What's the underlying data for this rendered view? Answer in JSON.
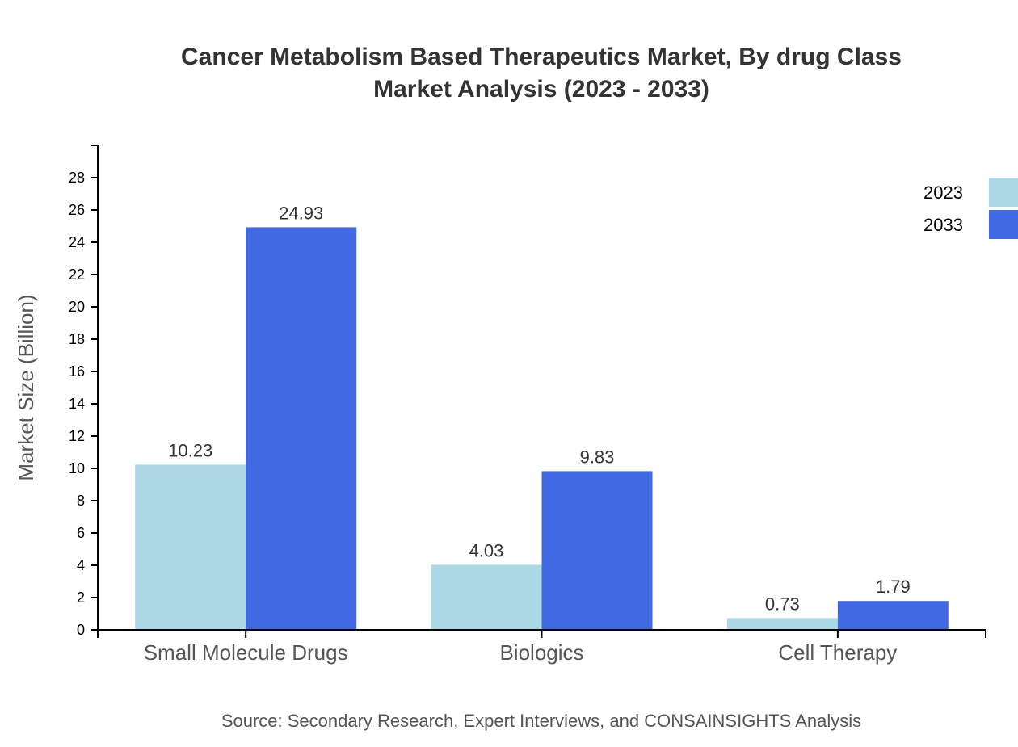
{
  "chart_data": {
    "type": "bar",
    "title": [
      "Cancer Metabolism Based Therapeutics Market, By drug Class",
      "Market Analysis (2023 - 2033)"
    ],
    "xlabel": "",
    "ylabel": "Market Size (Billion)",
    "ylim": [
      0,
      30
    ],
    "yticks": [
      0,
      2,
      4,
      6,
      8,
      10,
      12,
      14,
      16,
      18,
      20,
      22,
      24,
      26,
      28
    ],
    "categories": [
      "Small Molecule Drugs",
      "Biologics",
      "Cell Therapy"
    ],
    "series": [
      {
        "name": "2023",
        "values": [
          10.23,
          4.03,
          0.73
        ],
        "color": "#ADD8E6"
      },
      {
        "name": "2033",
        "values": [
          24.93,
          9.83,
          1.79
        ],
        "color": "#4169E1"
      }
    ],
    "grid": false,
    "legend": "top-right",
    "source": "Source: Secondary Research, Expert Interviews, and CONSAINSIGHTS Analysis"
  }
}
